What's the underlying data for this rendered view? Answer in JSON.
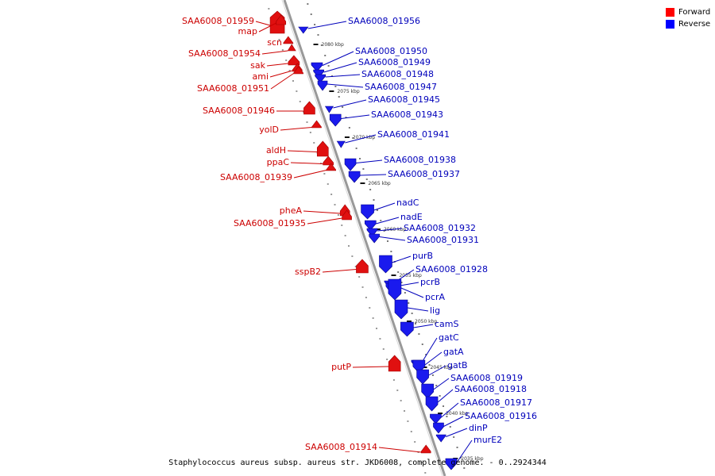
{
  "legend": {
    "forward": {
      "label": "Forward",
      "color": "#ff0000"
    },
    "reverse": {
      "label": "Reverse",
      "color": "#0000ff"
    }
  },
  "caption": "Staphylococcus aureus subsp. aureus str. JKD6008, complete genome. - 0..2924344",
  "colors": {
    "forward": "#e01010",
    "reverse": "#1a1aee",
    "label_forward": "#cc0000",
    "label_reverse": "#0000bb",
    "backbone": "#999999"
  },
  "axis_ticks": [
    {
      "label": "2080 kbp"
    },
    {
      "label": "2075 kbp"
    },
    {
      "label": "2070 kbp"
    },
    {
      "label": "2065 kbp"
    },
    {
      "label": "2060 kbp"
    },
    {
      "label": "2055 kbp"
    },
    {
      "label": "2050 kbp"
    },
    {
      "label": "2045 kbp"
    },
    {
      "label": "2040 kbp"
    },
    {
      "label": "2035 kbp"
    }
  ],
  "forward_genes": [
    {
      "label": "SAA6008_01959"
    },
    {
      "label": "map"
    },
    {
      "label": "scn"
    },
    {
      "label": "SAA6008_01954"
    },
    {
      "label": "sak"
    },
    {
      "label": "ami"
    },
    {
      "label": "SAA6008_01951"
    },
    {
      "label": "SAA6008_01946"
    },
    {
      "label": "yolD"
    },
    {
      "label": "aldH"
    },
    {
      "label": "ppaC"
    },
    {
      "label": "SAA6008_01939"
    },
    {
      "label": "pheA"
    },
    {
      "label": "SAA6008_01935"
    },
    {
      "label": "sspB2"
    },
    {
      "label": "putP"
    },
    {
      "label": "SAA6008_01914"
    }
  ],
  "reverse_genes": [
    {
      "label": "SAA6008_01956"
    },
    {
      "label": "SAA6008_01950"
    },
    {
      "label": "SAA6008_01949"
    },
    {
      "label": "SAA6008_01948"
    },
    {
      "label": "SAA6008_01947"
    },
    {
      "label": "SAA6008_01945"
    },
    {
      "label": "SAA6008_01943"
    },
    {
      "label": "SAA6008_01941"
    },
    {
      "label": "SAA6008_01938"
    },
    {
      "label": "SAA6008_01937"
    },
    {
      "label": "nadC"
    },
    {
      "label": "nadE"
    },
    {
      "label": "SAA6008_01932"
    },
    {
      "label": "SAA6008_01931"
    },
    {
      "label": "purB"
    },
    {
      "label": "SAA6008_01928"
    },
    {
      "label": "pcrB"
    },
    {
      "label": "pcrA"
    },
    {
      "label": "lig"
    },
    {
      "label": "camS"
    },
    {
      "label": "gatC"
    },
    {
      "label": "gatA"
    },
    {
      "label": "gatB"
    },
    {
      "label": "SAA6008_01919"
    },
    {
      "label": "SAA6008_01918"
    },
    {
      "label": "SAA6008_01917"
    },
    {
      "label": "SAA6008_01916"
    },
    {
      "label": "dinP"
    },
    {
      "label": "murE2"
    }
  ]
}
